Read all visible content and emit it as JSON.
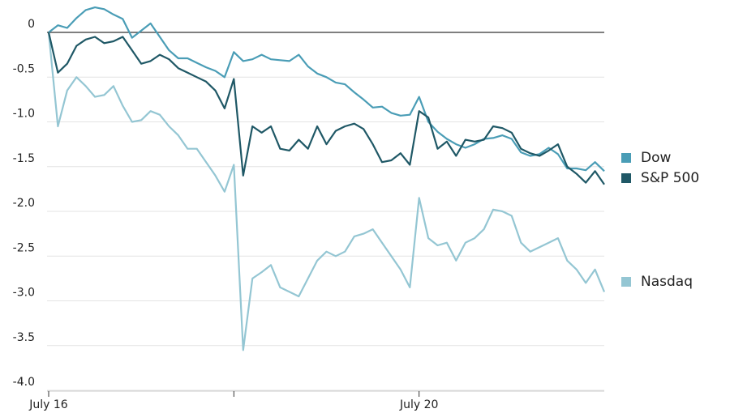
{
  "chart_data": {
    "type": "line",
    "categories": [
      "July 16",
      null,
      null,
      null,
      null,
      null,
      null,
      null,
      null,
      null,
      null,
      null,
      null,
      null,
      null,
      null,
      null,
      null,
      null,
      null,
      null,
      null,
      null,
      null,
      null,
      null,
      null,
      null,
      null,
      null,
      null,
      null,
      null,
      null,
      null,
      null,
      null,
      null,
      null,
      null,
      "July 20",
      null,
      null,
      null,
      null,
      null,
      null,
      null,
      null,
      null,
      null,
      null,
      null,
      null,
      null,
      null,
      null,
      null,
      null,
      null,
      null
    ],
    "xticks": [
      0,
      20,
      40
    ],
    "ylim": [
      -4,
      0.3
    ],
    "yticks": [
      0,
      -0.5,
      {
        "value": -1,
        "label": "-1.0"
      },
      -1.5,
      {
        "value": -2,
        "label": "-2.0"
      },
      -2.5,
      {
        "value": -3,
        "label": "-3.0"
      },
      -3.5,
      {
        "value": -4,
        "label": "-4.0"
      }
    ],
    "grid": true,
    "series": [
      {
        "name": "Dow",
        "color": "#4a9db6",
        "values": [
          0,
          0.08,
          0.05,
          0.16,
          0.25,
          0.28,
          0.26,
          0.2,
          0.15,
          -0.06,
          0.02,
          0.1,
          -0.05,
          -0.2,
          -0.29,
          -0.29,
          -0.34,
          -0.39,
          -0.43,
          -0.5,
          -0.22,
          -0.32,
          -0.3,
          -0.25,
          -0.3,
          -0.31,
          -0.32,
          -0.25,
          -0.38,
          -0.46,
          -0.5,
          -0.56,
          -0.58,
          -0.67,
          -0.75,
          -0.84,
          -0.83,
          -0.9,
          -0.93,
          -0.92,
          -0.72,
          -1.0,
          -1.11,
          -1.19,
          -1.25,
          -1.29,
          -1.25,
          -1.19,
          -1.18,
          -1.15,
          -1.19,
          -1.34,
          -1.38,
          -1.36,
          -1.29,
          -1.36,
          -1.52,
          -1.52,
          -1.54,
          -1.45,
          -1.55
        ]
      },
      {
        "name": "S&P 500",
        "color": "#1f5866",
        "values": [
          0,
          -0.45,
          -0.35,
          -0.15,
          -0.08,
          -0.05,
          -0.12,
          -0.1,
          -0.05,
          -0.2,
          -0.35,
          -0.32,
          -0.25,
          -0.3,
          -0.4,
          -0.45,
          -0.5,
          -0.55,
          -0.65,
          -0.85,
          -0.52,
          -1.6,
          -1.05,
          -1.12,
          -1.05,
          -1.3,
          -1.32,
          -1.2,
          -1.3,
          -1.05,
          -1.25,
          -1.1,
          -1.05,
          -1.02,
          -1.08,
          -1.25,
          -1.45,
          -1.43,
          -1.35,
          -1.48,
          -0.88,
          -0.95,
          -1.3,
          -1.22,
          -1.38,
          -1.2,
          -1.22,
          -1.2,
          -1.05,
          -1.07,
          -1.12,
          -1.3,
          -1.35,
          -1.38,
          -1.32,
          -1.25,
          -1.5,
          -1.58,
          -1.68,
          -1.55,
          -1.7
        ]
      },
      {
        "name": "Nasdaq",
        "color": "#94c6d3",
        "values": [
          0,
          -1.05,
          -0.65,
          -0.5,
          -0.6,
          -0.72,
          -0.7,
          -0.6,
          -0.82,
          -1.0,
          -0.98,
          -0.88,
          -0.92,
          -1.05,
          -1.15,
          -1.3,
          -1.3,
          -1.45,
          -1.6,
          -1.78,
          -1.48,
          -3.55,
          -2.75,
          -2.68,
          -2.6,
          -2.85,
          -2.9,
          -2.95,
          -2.75,
          -2.55,
          -2.45,
          -2.5,
          -2.45,
          -2.28,
          -2.25,
          -2.2,
          -2.35,
          -2.5,
          -2.65,
          -2.85,
          -1.85,
          -2.3,
          -2.38,
          -2.35,
          -2.55,
          -2.35,
          -2.3,
          -2.2,
          -1.98,
          -2.0,
          -2.05,
          -2.35,
          -2.45,
          -2.4,
          -2.35,
          -2.3,
          -2.55,
          -2.65,
          -2.8,
          -2.65,
          -2.9
        ]
      }
    ]
  }
}
